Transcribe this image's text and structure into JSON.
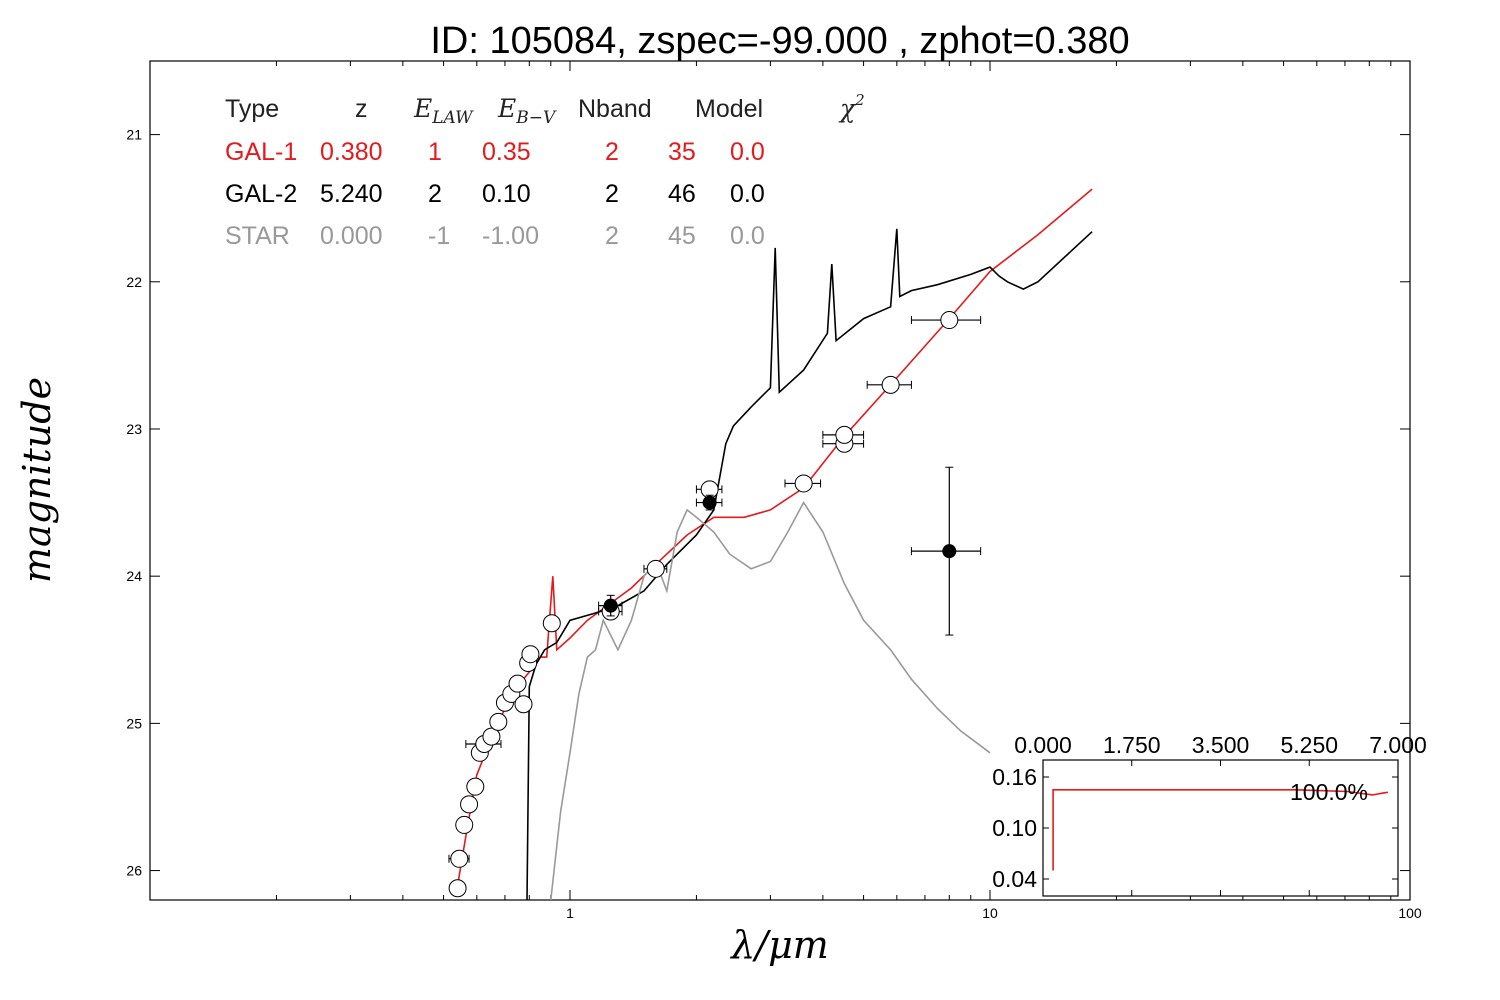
{
  "chart_data": {
    "type": "scatter",
    "title": "ID:  105084, zspec=-99.000 , zphot=0.380",
    "xlabel": "λ/μm",
    "ylabel": "magnitude",
    "xscale": "log",
    "xlim": [
      0.1,
      100
    ],
    "ylim": [
      26.2,
      20.5
    ],
    "xticks": [
      "1",
      "10",
      "100"
    ],
    "yticks": [
      "21",
      "22",
      "23",
      "24",
      "25",
      "26"
    ],
    "colors": {
      "gal1": "#e41a1c",
      "gal2": "#000000",
      "star": "#999999"
    },
    "fit_table": {
      "headers": [
        "Type",
        "z",
        "E",
        "LAW",
        "E",
        "B−V",
        "Nband",
        "Model",
        "χ",
        "2"
      ],
      "rows": [
        {
          "cells": [
            "GAL-1",
            "0.380",
            "1",
            "0.35",
            "2",
            "35",
            "0.0"
          ],
          "color": "#e41a1c"
        },
        {
          "cells": [
            "GAL-2",
            "5.240",
            "2",
            "0.10",
            "2",
            "46",
            "0.0"
          ],
          "color": "#000000"
        },
        {
          "cells": [
            "STAR",
            "0.000",
            "-1",
            "-1.00",
            "2",
            "45",
            "0.0"
          ],
          "color": "#999999"
        }
      ]
    },
    "observed_points": [
      {
        "x": 0.54,
        "y": 26.12,
        "xerr": 0.01
      },
      {
        "x": 0.545,
        "y": 25.92,
        "xerr": 0.03
      },
      {
        "x": 0.56,
        "y": 25.69,
        "xerr": 0.01
      },
      {
        "x": 0.575,
        "y": 25.55,
        "xerr": 0.01
      },
      {
        "x": 0.595,
        "y": 25.43,
        "xerr": 0.01
      },
      {
        "x": 0.61,
        "y": 25.2,
        "xerr": 0.02
      },
      {
        "x": 0.625,
        "y": 25.14,
        "xerr": 0.06
      },
      {
        "x": 0.65,
        "y": 25.09,
        "xerr": 0.01
      },
      {
        "x": 0.675,
        "y": 24.99,
        "xerr": 0.01
      },
      {
        "x": 0.7,
        "y": 24.86,
        "xerr": 0.01
      },
      {
        "x": 0.725,
        "y": 24.8,
        "xerr": 0.01
      },
      {
        "x": 0.75,
        "y": 24.73,
        "xerr": 0.01
      },
      {
        "x": 0.775,
        "y": 24.87,
        "xerr": 0.01
      },
      {
        "x": 0.795,
        "y": 24.59,
        "xerr": 0.01
      },
      {
        "x": 0.805,
        "y": 24.53,
        "xerr": 0.01
      },
      {
        "x": 0.905,
        "y": 24.32,
        "xerr": 0.02
      },
      {
        "x": 1.25,
        "y": 24.24,
        "xerr": 0.08
      },
      {
        "x": 1.6,
        "y": 23.95,
        "xerr": 0.1
      },
      {
        "x": 2.15,
        "y": 23.41,
        "xerr": 0.15
      },
      {
        "x": 3.6,
        "y": 23.37,
        "xerr": 0.35
      },
      {
        "x": 4.5,
        "y": 23.1,
        "xerr": 0.5
      },
      {
        "x": 4.5,
        "y": 23.04,
        "xerr": 0.5
      },
      {
        "x": 5.8,
        "y": 22.7,
        "xerr": 0.7
      },
      {
        "x": 8.0,
        "y": 22.26,
        "xerr": 1.5
      }
    ],
    "filled_points": [
      {
        "x": 1.25,
        "y": 24.2,
        "xerr": 0.08,
        "yerr": 0.07
      },
      {
        "x": 2.15,
        "y": 23.5,
        "xerr": 0.15,
        "yerr": 0.05
      },
      {
        "x": 8.0,
        "y": 23.83,
        "xerr": 1.5,
        "yerr": 0.57
      }
    ],
    "series": [
      {
        "name": "GAL-1",
        "color": "#e41a1c",
        "x": [
          0.54,
          0.57,
          0.6,
          0.65,
          0.7,
          0.75,
          0.8,
          0.85,
          0.88,
          0.91,
          0.93,
          1.0,
          1.1,
          1.2,
          1.4,
          1.6,
          1.9,
          2.2,
          2.6,
          3.0,
          3.6,
          4.5,
          5.8,
          8.0,
          10.0,
          13.0,
          17.5
        ],
        "y": [
          26.1,
          25.7,
          25.35,
          25.1,
          24.9,
          24.75,
          24.65,
          24.55,
          24.55,
          24.0,
          24.5,
          24.42,
          24.3,
          24.22,
          24.08,
          23.92,
          23.72,
          23.6,
          23.6,
          23.55,
          23.4,
          23.05,
          22.7,
          22.25,
          21.93,
          21.68,
          21.37
        ]
      },
      {
        "name": "GAL-2",
        "color": "#000000",
        "x": [
          0.79,
          0.8,
          0.83,
          0.87,
          0.93,
          1.0,
          1.15,
          1.3,
          1.5,
          1.7,
          2.0,
          2.2,
          2.35,
          2.45,
          2.7,
          3.0,
          3.08,
          3.15,
          3.6,
          4.1,
          4.2,
          4.3,
          5.0,
          5.8,
          6.0,
          6.1,
          6.5,
          7.5,
          9.0,
          10.0,
          10.5,
          11.0,
          12.0,
          13.0,
          17.5
        ],
        "y": [
          26.2,
          24.75,
          24.6,
          24.5,
          24.45,
          24.3,
          24.25,
          24.2,
          24.1,
          23.92,
          23.72,
          23.55,
          23.1,
          22.98,
          22.85,
          22.72,
          21.77,
          22.75,
          22.6,
          22.35,
          21.88,
          22.4,
          22.25,
          22.17,
          21.64,
          22.1,
          22.06,
          22.02,
          21.95,
          21.9,
          21.96,
          22.0,
          22.05,
          22.0,
          21.66
        ]
      },
      {
        "name": "STAR",
        "color": "#999999",
        "x": [
          0.9,
          0.95,
          1.0,
          1.05,
          1.1,
          1.15,
          1.2,
          1.3,
          1.4,
          1.5,
          1.6,
          1.7,
          1.8,
          1.9,
          2.0,
          2.2,
          2.4,
          2.7,
          3.0,
          3.3,
          3.6,
          4.0,
          4.5,
          5.0,
          5.8,
          6.5,
          7.5,
          8.5,
          10.0
        ],
        "y": [
          26.2,
          25.6,
          25.2,
          24.8,
          24.55,
          24.5,
          24.3,
          24.5,
          24.3,
          24.0,
          23.9,
          24.1,
          23.7,
          23.55,
          23.6,
          23.7,
          23.85,
          23.95,
          23.9,
          23.7,
          23.5,
          23.7,
          24.05,
          24.3,
          24.5,
          24.7,
          24.9,
          25.05,
          25.2
        ]
      }
    ],
    "inset": {
      "top_ticks": [
        "0.000",
        "1.750",
        "3.500",
        "5.250",
        "7.000"
      ],
      "left_ticks": [
        "0.16",
        "0.10",
        "0.04"
      ],
      "xlim": [
        0,
        7.0
      ],
      "ylim": [
        0.02,
        0.18
      ],
      "label": "100.0%",
      "curve": {
        "x": [
          0.2,
          0.2,
          1.0,
          3.0,
          5.0,
          6.0,
          6.5,
          6.6,
          6.7,
          6.8
        ],
        "y": [
          0.05,
          0.145,
          0.145,
          0.145,
          0.145,
          0.143,
          0.139,
          0.14,
          0.141,
          0.142
        ]
      }
    }
  }
}
